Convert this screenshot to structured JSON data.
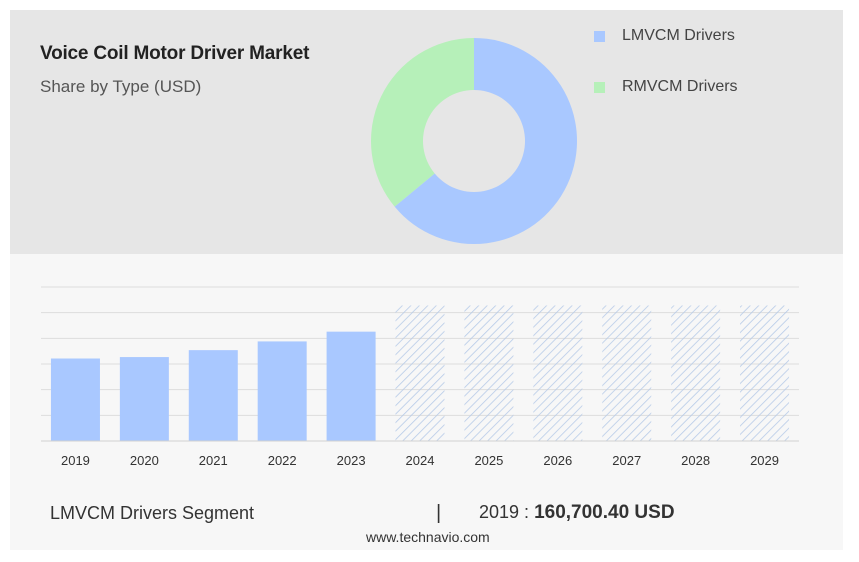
{
  "title": "Voice Coil Motor Driver Market",
  "subtitle": "Share by Type (USD)",
  "colors": {
    "lmvcm": "#a9c8ff",
    "rmvcm": "#b6f0b9",
    "forecast_hatch": "#b7cbe8",
    "grid": "#dddddd",
    "top_panel": "#e6e6e6",
    "bottom_panel": "#f7f7f7"
  },
  "chart_data": [
    {
      "type": "pie",
      "variant": "donut",
      "categories": [
        "LMVCM Drivers",
        "RMVCM Drivers"
      ],
      "values": [
        64,
        36
      ],
      "legend_position": "right"
    },
    {
      "type": "bar",
      "categories": [
        "2019",
        "2020",
        "2021",
        "2022",
        "2023",
        "2024",
        "2025",
        "2026",
        "2027",
        "2028",
        "2029"
      ],
      "series": [
        {
          "name": "LMVCM Drivers",
          "values": [
            160.7,
            163.5,
            177.0,
            194.0,
            213.0,
            null,
            null,
            null,
            null,
            null,
            null
          ]
        }
      ],
      "forecast": [
        "2024",
        "2025",
        "2026",
        "2027",
        "2028",
        "2029"
      ],
      "ylim": [
        0,
        300
      ],
      "grid": true
    }
  ],
  "footer": {
    "segment": "LMVCM Drivers Segment",
    "divider": "|",
    "year": "2019",
    "separator": " : ",
    "value": "160,700.40 USD"
  },
  "source": "www.technavio.com"
}
